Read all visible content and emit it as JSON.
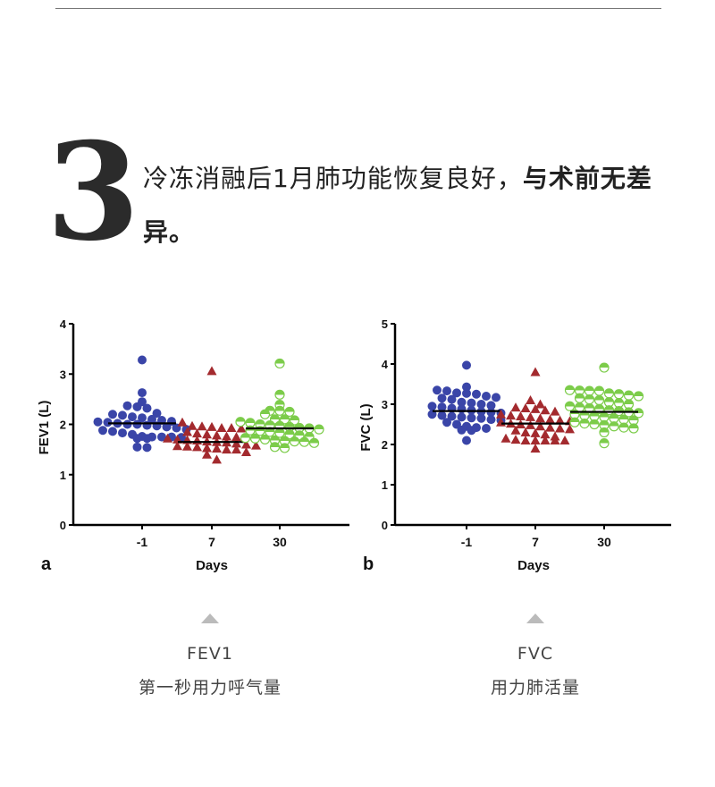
{
  "header": {
    "number": "3",
    "title_regular": "冷冻消融后1月肺功能恢复良好，",
    "title_bold": "与术前无差异。"
  },
  "captions": [
    {
      "abbr": "FEV1",
      "desc": "第一秒用力呼气量"
    },
    {
      "abbr": "FVC",
      "desc": "用力肺活量"
    }
  ],
  "colors": {
    "day_minus1": "#3a45a8",
    "day_7": "#a32a2e",
    "day_30": "#7ccc4a"
  },
  "chart_data": [
    {
      "type": "scatter",
      "panel_label": "a",
      "xlabel": "Days",
      "ylabel": "FEV1 (L)",
      "ylim": [
        0,
        4
      ],
      "yticks": [
        "0",
        "1",
        "2",
        "3",
        "4"
      ],
      "categories": [
        "-1",
        "7",
        "30"
      ],
      "markers": [
        "circle",
        "triangle",
        "half-circle"
      ],
      "means": [
        2.02,
        1.65,
        1.92
      ],
      "series": [
        {
          "values": [
            3.28,
            2.63,
            2.45,
            2.35,
            2.32,
            2.37,
            2.22,
            2.2,
            2.18,
            2.15,
            2.13,
            2.1,
            2.08,
            2.06,
            2.05,
            2.04,
            2.02,
            2.0,
            2.0,
            1.98,
            1.97,
            1.95,
            1.93,
            1.9,
            1.88,
            1.86,
            1.83,
            1.8,
            1.76,
            1.75,
            1.74,
            1.72,
            1.72,
            1.75,
            1.75,
            1.55,
            1.54
          ]
        },
        {
          "values": [
            3.06,
            2.04,
            1.97,
            1.95,
            1.93,
            1.92,
            1.93,
            1.96,
            1.85,
            1.82,
            1.8,
            1.78,
            1.76,
            1.75,
            1.72,
            1.7,
            1.69,
            1.68,
            1.66,
            1.65,
            1.64,
            1.62,
            1.6,
            1.58,
            1.57,
            1.56,
            1.55,
            1.53,
            1.52,
            1.5,
            1.5,
            1.45,
            1.4,
            1.3
          ]
        },
        {
          "values": [
            3.21,
            2.59,
            2.39,
            2.27,
            2.27,
            2.25,
            2.2,
            2.1,
            2.08,
            2.1,
            2.05,
            2.03,
            2.0,
            1.98,
            1.97,
            1.95,
            1.93,
            1.92,
            1.9,
            1.88,
            1.87,
            1.85,
            1.83,
            1.8,
            1.78,
            1.75,
            1.73,
            1.72,
            1.7,
            1.68,
            1.67,
            1.66,
            1.65,
            1.63,
            1.55,
            1.53
          ]
        }
      ]
    },
    {
      "type": "scatter",
      "panel_label": "b",
      "xlabel": "Days",
      "ylabel": "FVC (L)",
      "ylim": [
        0,
        5
      ],
      "yticks": [
        "0",
        "1",
        "2",
        "3",
        "4",
        "5"
      ],
      "categories": [
        "-1",
        "7",
        "30"
      ],
      "markers": [
        "circle",
        "triangle",
        "half-circle"
      ],
      "means": [
        2.83,
        2.52,
        2.81
      ],
      "series": [
        {
          "values": [
            3.97,
            3.43,
            3.35,
            3.33,
            3.28,
            3.27,
            3.25,
            3.2,
            3.17,
            3.15,
            3.12,
            3.05,
            3.03,
            3.0,
            2.97,
            2.95,
            2.93,
            2.9,
            2.88,
            2.85,
            2.82,
            2.8,
            2.78,
            2.75,
            2.72,
            2.7,
            2.68,
            2.66,
            2.65,
            2.62,
            2.6,
            2.55,
            2.5,
            2.45,
            2.42,
            2.4,
            2.36,
            2.35,
            2.1
          ]
        },
        {
          "values": [
            3.8,
            3.1,
            3.0,
            2.92,
            2.9,
            2.88,
            2.85,
            2.82,
            2.75,
            2.72,
            2.7,
            2.68,
            2.65,
            2.62,
            2.6,
            2.58,
            2.55,
            2.52,
            2.5,
            2.48,
            2.45,
            2.42,
            2.4,
            2.38,
            2.35,
            2.3,
            2.28,
            2.25,
            2.2,
            2.15,
            2.12,
            2.1,
            2.1,
            2.1,
            2.1,
            2.1,
            1.9
          ]
        },
        {
          "values": [
            3.91,
            3.35,
            3.34,
            3.33,
            3.33,
            3.27,
            3.25,
            3.22,
            3.2,
            3.15,
            3.12,
            3.1,
            3.05,
            3.03,
            3.0,
            2.95,
            2.92,
            2.9,
            2.88,
            2.85,
            2.83,
            2.8,
            2.78,
            2.75,
            2.72,
            2.7,
            2.68,
            2.65,
            2.62,
            2.6,
            2.55,
            2.52,
            2.5,
            2.48,
            2.45,
            2.42,
            2.4,
            2.3,
            2.03
          ]
        }
      ]
    }
  ]
}
